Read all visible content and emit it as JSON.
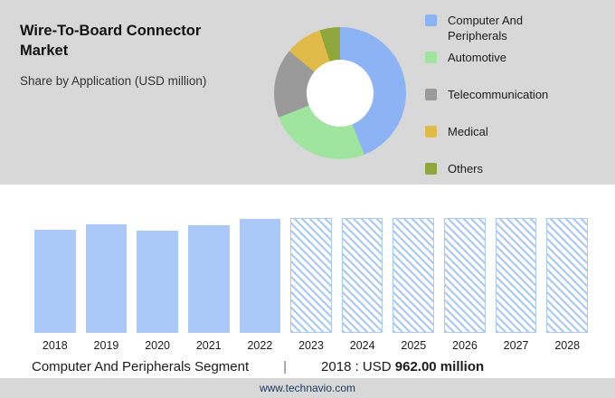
{
  "header": {
    "title": "Wire-To-Board Connector Market",
    "subtitle": "Share by Application (USD million)"
  },
  "chart_data": [
    {
      "type": "pie",
      "donut": true,
      "title": "Share by Application (USD million)",
      "labels": [
        "Computer And Peripherals",
        "Automotive",
        "Telecommunication",
        "Medical",
        "Others"
      ],
      "values": [
        44,
        25,
        17,
        9,
        5
      ],
      "colors": [
        "#8cb4f4",
        "#9fe59f",
        "#9a9a9a",
        "#e0bb4a",
        "#8fa63d"
      ],
      "legend_position": "right",
      "hole_color": "#ffffff"
    },
    {
      "type": "bar",
      "categories": [
        "2018",
        "2019",
        "2020",
        "2021",
        "2022",
        "2023",
        "2024",
        "2025",
        "2026",
        "2027",
        "2028"
      ],
      "values": [
        962,
        1014,
        953,
        1006,
        1067,
        1076,
        1076,
        1076,
        1076,
        1076,
        1076
      ],
      "hatched": [
        false,
        false,
        false,
        false,
        false,
        true,
        true,
        true,
        true,
        true,
        true
      ],
      "bar_color": "#aac9f8",
      "title": "",
      "xlabel": "",
      "ylabel": "",
      "ylim": [
        0,
        1100
      ]
    }
  ],
  "caption": {
    "segment": "Computer And Peripherals Segment",
    "separator": "|",
    "year_label": "2018 : USD",
    "value_bold": "962.00 million"
  },
  "footer": {
    "url": "www.technavio.com"
  }
}
